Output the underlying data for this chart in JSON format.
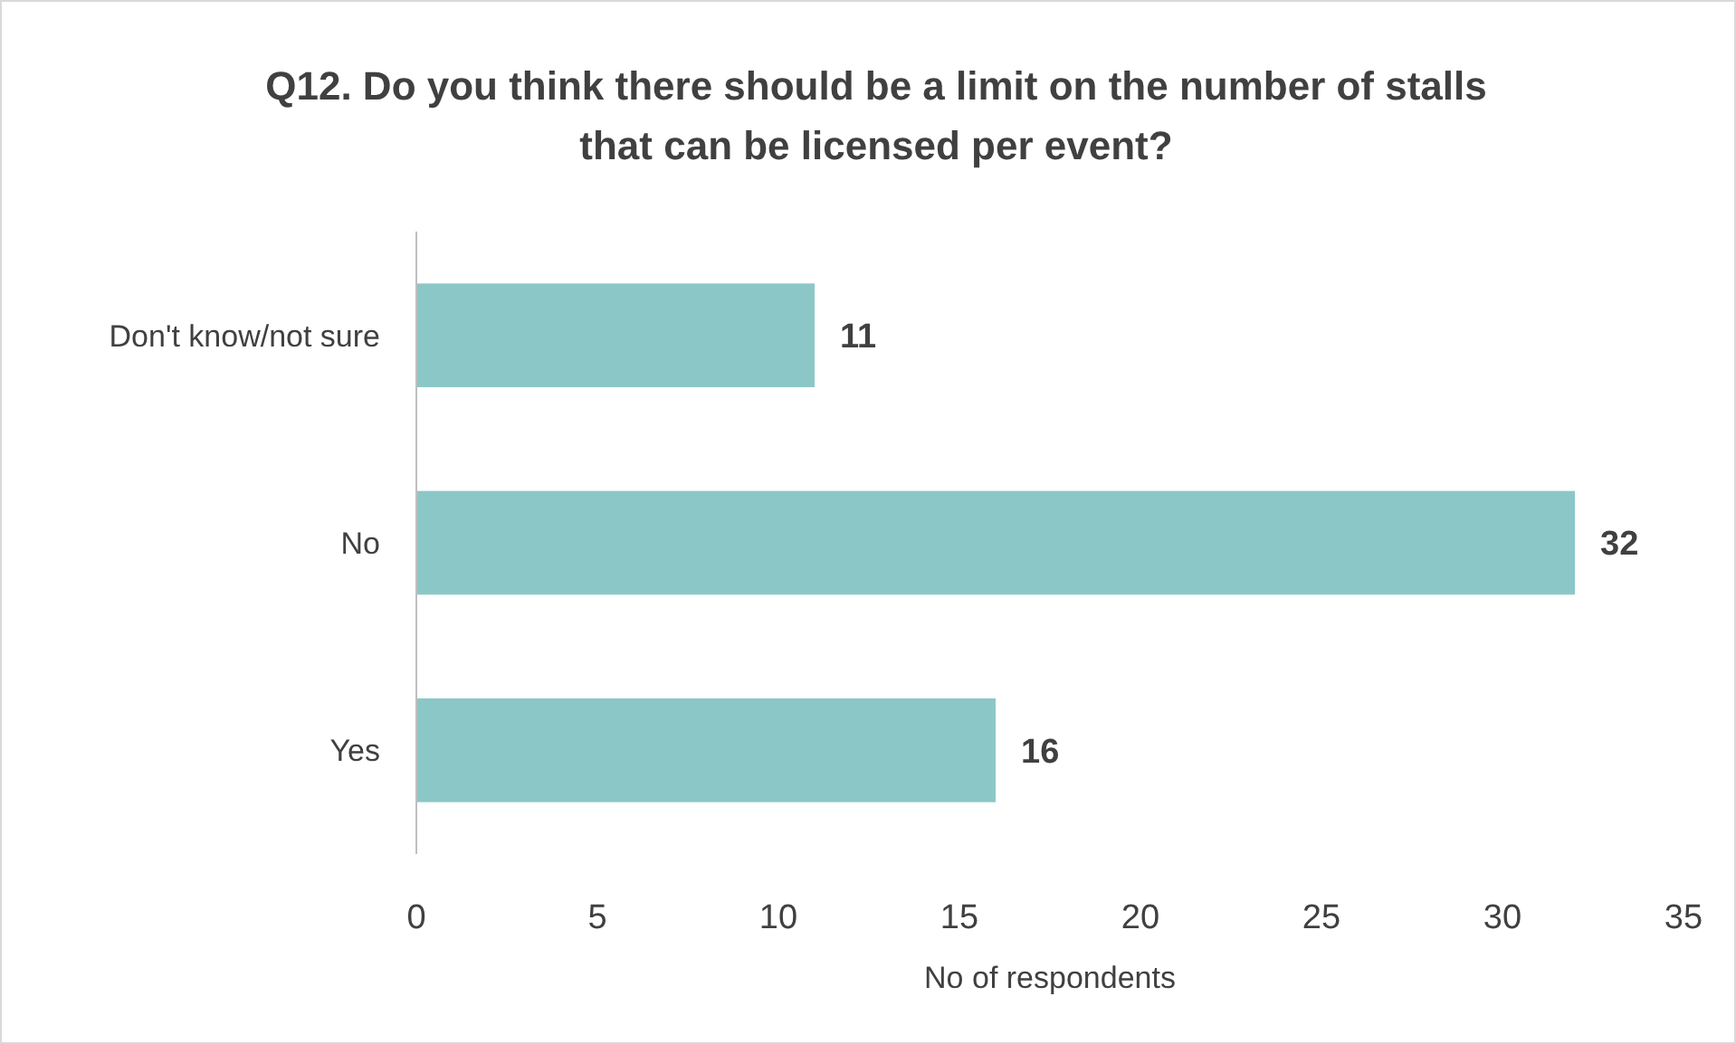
{
  "chart_data": {
    "type": "bar",
    "orientation": "horizontal",
    "title": "Q12. Do you think there should be a limit on the number of stalls\nthat can be licensed per event?",
    "xlabel": "No of respondents",
    "categories": [
      "Don't know/not sure",
      "No",
      "Yes"
    ],
    "values": [
      11,
      32,
      16
    ],
    "color": "#8cc7c7",
    "xlim": [
      0,
      35
    ],
    "xticks": [
      0,
      5,
      10,
      15,
      20,
      25,
      30,
      35
    ],
    "data_labels": true
  }
}
